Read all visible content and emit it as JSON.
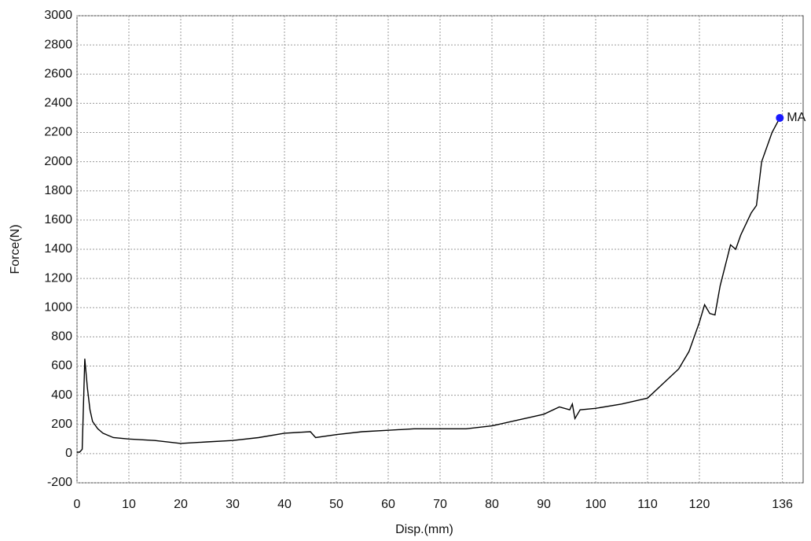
{
  "chart_data": {
    "type": "line",
    "x_label": "Disp.(mm)",
    "y_label": "Force(N)",
    "x": [
      0,
      0.5,
      1,
      1.5,
      2,
      2.5,
      3,
      4,
      5,
      7,
      10,
      15,
      20,
      25,
      30,
      35,
      40,
      45,
      46,
      50,
      55,
      60,
      65,
      70,
      75,
      80,
      85,
      90,
      93,
      95,
      95.5,
      96,
      97,
      100,
      105,
      110,
      113,
      116,
      118,
      120,
      121,
      122,
      123,
      124,
      126,
      127,
      128,
      130,
      131,
      132,
      134,
      135.5
    ],
    "series": [
      {
        "color": "#000000",
        "values": [
          10,
          10,
          30,
          650,
          450,
          300,
          220,
          170,
          140,
          110,
          100,
          90,
          70,
          80,
          90,
          110,
          140,
          150,
          110,
          130,
          150,
          160,
          170,
          170,
          170,
          190,
          230,
          270,
          320,
          300,
          340,
          240,
          300,
          310,
          340,
          380,
          480,
          580,
          700,
          900,
          1020,
          960,
          950,
          1150,
          1430,
          1400,
          1500,
          1650,
          1700,
          2000,
          2200,
          2300
        ]
      }
    ],
    "marker": {
      "x": 135.5,
      "y": 2300,
      "label": "MA",
      "color": "#1a1aff"
    },
    "xlim": [
      0,
      140
    ],
    "xticks": [
      0,
      10,
      20,
      30,
      40,
      50,
      60,
      70,
      80,
      90,
      100,
      110,
      120,
      136
    ],
    "ylim": [
      -200,
      3000
    ],
    "yticks": [
      -200,
      0,
      200,
      400,
      600,
      800,
      1000,
      1200,
      1400,
      1600,
      1800,
      2000,
      2200,
      2400,
      2600,
      2800,
      3000
    ],
    "grid": true
  }
}
